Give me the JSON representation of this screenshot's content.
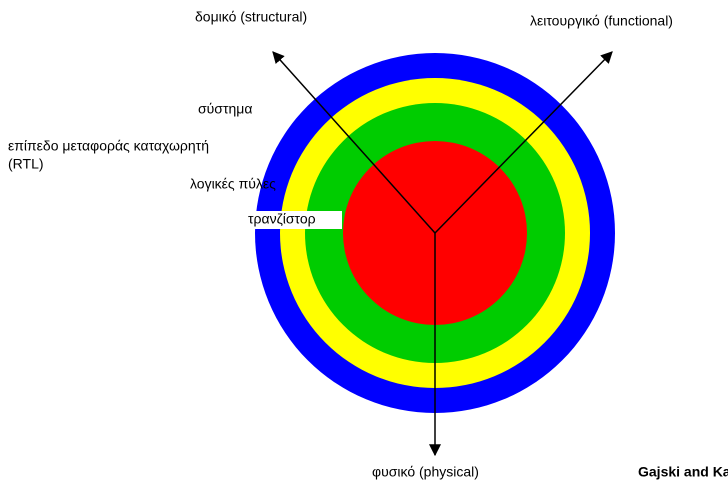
{
  "axes": [
    {
      "label": "δομικό (structural)"
    },
    {
      "label": "λειτουργικό (functional)"
    },
    {
      "label": "φυσικό (physical)"
    }
  ],
  "levels": [
    {
      "label": "σύστημα"
    },
    {
      "label": [
        "επίπεδο μεταφοράς καταχωρητή",
        "(RTL)"
      ]
    },
    {
      "label": "λογικές πύλες"
    },
    {
      "label": "τρανζίστορ"
    }
  ],
  "credit": "Gajski and Ka"
}
